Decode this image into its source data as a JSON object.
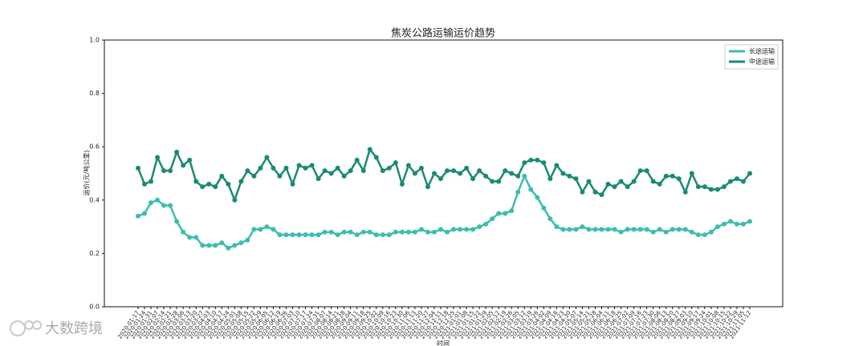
{
  "chart_data": {
    "type": "line",
    "title": "焦炭公路运输运价趋势",
    "x_label": "时间",
    "y_label": "运价(元/吨公里)",
    "categories": [
      "2020-01-17",
      "2020-01-24",
      "2020-01-31",
      "2020-02-07",
      "2020-02-14",
      "2020-02-21",
      "2020-02-28",
      "2020-03-06",
      "2020-03-13",
      "2020-03-20",
      "2020-03-27",
      "2020-04-03",
      "2020-04-10",
      "2020-04-17",
      "2020-04-24",
      "2020-05-01",
      "2020-05-08",
      "2020-05-15",
      "2020-05-22",
      "2020-05-29",
      "2020-06-05",
      "2020-06-12",
      "2020-06-19",
      "2020-06-26",
      "2020-07-03",
      "2020-07-10",
      "2020-07-17",
      "2020-07-24",
      "2020-07-31",
      "2020-08-07",
      "2020-08-14",
      "2020-08-21",
      "2020-08-28",
      "2020-09-04",
      "2020-09-11",
      "2020-09-18",
      "2020-09-25",
      "2020-10-02",
      "2020-10-09",
      "2020-10-16",
      "2020-10-23",
      "2020-10-30",
      "2020-11-06",
      "2020-11-13",
      "2020-11-20",
      "2020-11-27",
      "2020-12-04",
      "2020-12-11",
      "2020-12-18",
      "2020-12-25",
      "2021-01-01",
      "2021-01-08",
      "2021-01-15",
      "2021-01-22",
      "2021-01-29",
      "2021-02-05",
      "2021-02-12",
      "2021-02-19",
      "2021-02-26",
      "2021-03-05",
      "2021-03-12",
      "2021-03-19",
      "2021-03-26",
      "2021-04-02",
      "2021-04-09",
      "2021-04-16",
      "2021-04-23",
      "2021-04-30",
      "2021-05-07",
      "2021-05-14",
      "2021-05-21",
      "2021-05-28",
      "2021-06-04",
      "2021-06-11",
      "2021-06-18",
      "2021-06-25",
      "2021-07-02",
      "2021-07-09",
      "2021-07-16",
      "2021-07-23",
      "2021-07-30",
      "2021-08-06",
      "2021-08-13",
      "2021-08-20",
      "2021-08-27",
      "2021-09-03",
      "2021-09-10",
      "2021-09-17",
      "2021-09-24",
      "2021-10-01",
      "2021-10-08",
      "2021-10-15",
      "2021-10-22",
      "2021-10-29",
      "2021-11-05",
      "2021-11-12"
    ],
    "series": [
      {
        "name": "长途运输",
        "color": "#3dbdad",
        "values": [
          0.34,
          0.35,
          0.39,
          0.4,
          0.38,
          0.38,
          0.32,
          0.28,
          0.26,
          0.26,
          0.23,
          0.23,
          0.23,
          0.24,
          0.22,
          0.23,
          0.24,
          0.25,
          0.29,
          0.29,
          0.3,
          0.29,
          0.27,
          0.27,
          0.27,
          0.27,
          0.27,
          0.27,
          0.27,
          0.28,
          0.28,
          0.27,
          0.28,
          0.28,
          0.27,
          0.28,
          0.28,
          0.27,
          0.27,
          0.27,
          0.28,
          0.28,
          0.28,
          0.28,
          0.29,
          0.28,
          0.28,
          0.29,
          0.28,
          0.29,
          0.29,
          0.29,
          0.29,
          0.3,
          0.31,
          0.33,
          0.35,
          0.35,
          0.36,
          0.43,
          0.49,
          0.44,
          0.41,
          0.37,
          0.33,
          0.3,
          0.29,
          0.29,
          0.29,
          0.3,
          0.29,
          0.29,
          0.29,
          0.29,
          0.29,
          0.28,
          0.29,
          0.29,
          0.29,
          0.29,
          0.28,
          0.29,
          0.28,
          0.29,
          0.29,
          0.29,
          0.28,
          0.27,
          0.27,
          0.28,
          0.3,
          0.31,
          0.32,
          0.31,
          0.31,
          0.32
        ]
      },
      {
        "name": "中途运输",
        "color": "#1b8a74",
        "values": [
          0.52,
          0.46,
          0.47,
          0.56,
          0.51,
          0.51,
          0.58,
          0.53,
          0.55,
          0.47,
          0.45,
          0.46,
          0.45,
          0.49,
          0.46,
          0.4,
          0.47,
          0.51,
          0.49,
          0.52,
          0.56,
          0.52,
          0.49,
          0.52,
          0.46,
          0.53,
          0.52,
          0.53,
          0.48,
          0.51,
          0.5,
          0.52,
          0.49,
          0.51,
          0.55,
          0.51,
          0.59,
          0.56,
          0.51,
          0.52,
          0.54,
          0.46,
          0.53,
          0.5,
          0.52,
          0.45,
          0.5,
          0.48,
          0.51,
          0.51,
          0.5,
          0.52,
          0.48,
          0.51,
          0.49,
          0.47,
          0.47,
          0.51,
          0.5,
          0.49,
          0.54,
          0.55,
          0.55,
          0.54,
          0.48,
          0.53,
          0.5,
          0.49,
          0.48,
          0.43,
          0.47,
          0.43,
          0.42,
          0.46,
          0.45,
          0.47,
          0.45,
          0.47,
          0.51,
          0.51,
          0.47,
          0.46,
          0.49,
          0.49,
          0.48,
          0.43,
          0.5,
          0.45,
          0.45,
          0.44,
          0.44,
          0.45,
          0.47,
          0.48,
          0.47,
          0.5
        ]
      }
    ],
    "ylim": [
      0,
      1
    ],
    "yticks": [
      {
        "value": 0,
        "label": "0.0"
      },
      0.2,
      0.4,
      0.6,
      0.8,
      {
        "value": 1,
        "label": "1.0"
      }
    ],
    "legend": "upper right",
    "grid": false
  },
  "watermark": "大数跨境"
}
